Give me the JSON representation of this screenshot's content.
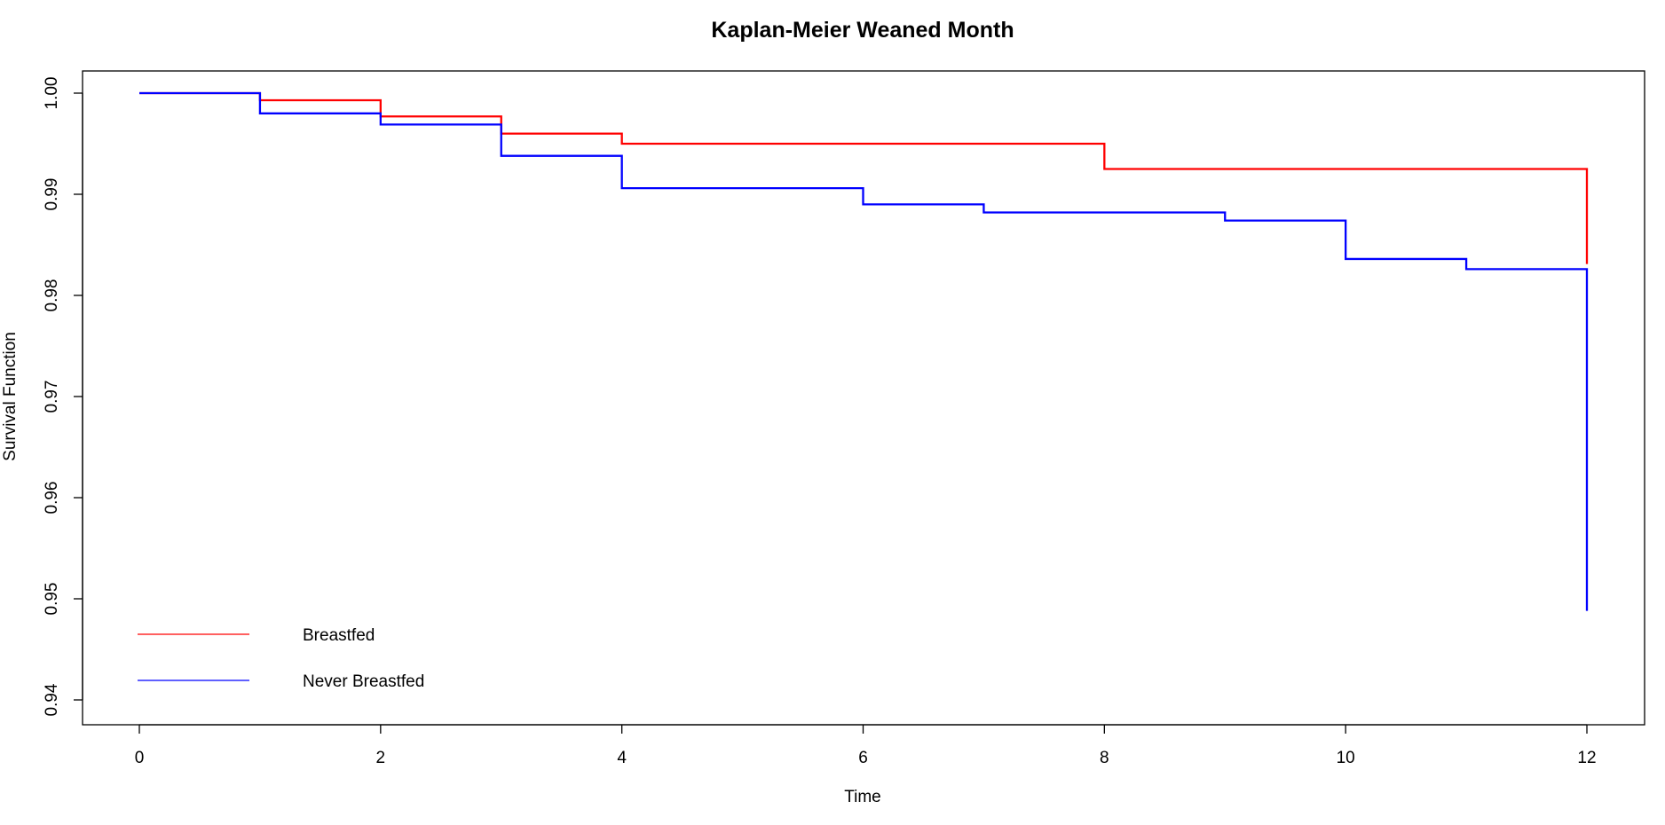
{
  "chart_data": {
    "type": "line",
    "step": true,
    "title": "Kaplan-Meier Weaned Month",
    "xlabel": "Time",
    "ylabel": "Survival Function",
    "xlim": [
      0,
      12
    ],
    "ylim": [
      0.94,
      1.0
    ],
    "x_ticks": [
      {
        "value": 0,
        "label": "0"
      },
      {
        "value": 2,
        "label": "2"
      },
      {
        "value": 4,
        "label": "4"
      },
      {
        "value": 6,
        "label": "6"
      },
      {
        "value": 8,
        "label": "8"
      },
      {
        "value": 10,
        "label": "10"
      },
      {
        "value": 12,
        "label": "12"
      }
    ],
    "y_ticks": [
      {
        "value": 0.94,
        "label": "0.94"
      },
      {
        "value": 0.95,
        "label": "0.95"
      },
      {
        "value": 0.96,
        "label": "0.96"
      },
      {
        "value": 0.97,
        "label": "0.97"
      },
      {
        "value": 0.98,
        "label": "0.98"
      },
      {
        "value": 0.99,
        "label": "0.99"
      },
      {
        "value": 1.0,
        "label": "1.00"
      }
    ],
    "grid": false,
    "legend_position": "bottom-left",
    "series": [
      {
        "name": "Breastfed",
        "color": "#ff0000",
        "x": [
          0,
          1,
          2,
          3,
          4,
          8,
          12
        ],
        "y": [
          1.0,
          0.9993,
          0.9977,
          0.996,
          0.995,
          0.9925,
          0.9831
        ]
      },
      {
        "name": "Never Breastfed",
        "color": "#0000ff",
        "x": [
          0,
          1,
          2,
          3,
          4,
          6,
          7,
          9,
          10,
          11,
          12
        ],
        "y": [
          1.0,
          0.998,
          0.9969,
          0.9938,
          0.9906,
          0.989,
          0.9882,
          0.9874,
          0.9836,
          0.9826,
          0.9488
        ]
      }
    ]
  }
}
